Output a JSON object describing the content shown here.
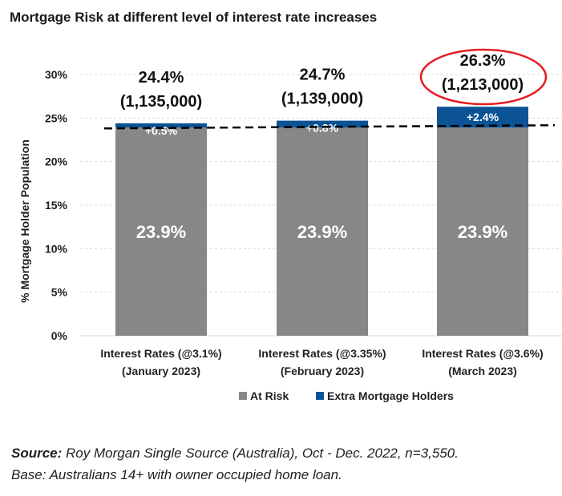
{
  "chart_data": {
    "type": "bar",
    "stacked": true,
    "title": "Mortgage Risk at different level of interest rate increases",
    "ylabel": "% Mortgage Holder Population",
    "xlabel": "",
    "ylim": [
      0,
      30
    ],
    "yticks": [
      "0%",
      "5%",
      "10%",
      "15%",
      "20%",
      "25%",
      "30%"
    ],
    "ytick_values": [
      0,
      5,
      10,
      15,
      20,
      25,
      30
    ],
    "grid": true,
    "categories": [
      [
        "Interest Rates (@3.1%)",
        "(January 2023)"
      ],
      [
        "Interest Rates (@3.35%)",
        "(February 2023)"
      ],
      [
        "Interest Rates (@3.6%)",
        "(March 2023)"
      ]
    ],
    "series": [
      {
        "name": "At Risk",
        "color": "#878787",
        "values": [
          23.9,
          23.9,
          23.9
        ],
        "labels": [
          "23.9%",
          "23.9%",
          "23.9%"
        ]
      },
      {
        "name": "Extra Mortgage Holders",
        "color": "#0b5394",
        "values": [
          0.5,
          0.8,
          2.4
        ],
        "labels": [
          "+0.5%",
          "+0.8%",
          "+2.4%"
        ]
      }
    ],
    "total_labels": [
      [
        "24.4%",
        "(1,135,000)"
      ],
      [
        "24.7%",
        "(1,139,000)"
      ],
      [
        "26.3%",
        "(1,213,000)"
      ]
    ],
    "reference_line": {
      "value": 23.9,
      "style": "dashed"
    },
    "highlight": {
      "category_index": 2,
      "shape": "ellipse",
      "color": "#e31e24"
    },
    "legend_position": "bottom"
  },
  "source": {
    "label": "Source:",
    "text": " Roy Morgan Single Source (Australia), Oct - Dec. 2022, n=3,550.",
    "base": "Base: Australians 14+ with owner occupied home loan."
  }
}
